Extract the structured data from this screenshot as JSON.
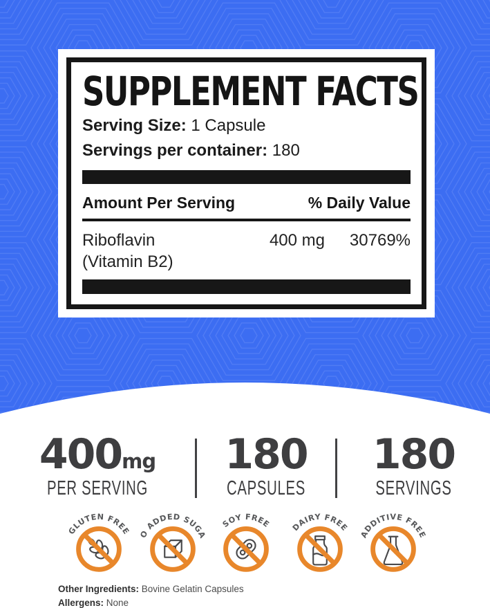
{
  "label_panel": {
    "title": "SUPPLEMENT FACTS",
    "serving_size_label": "Serving Size:",
    "serving_size_value": "1 Capsule",
    "servings_per_container_label": "Servings per container:",
    "servings_per_container_value": "180",
    "column_amount": "Amount Per Serving",
    "column_daily_value": "% Daily Value",
    "rows": [
      {
        "name": "Riboflavin",
        "name_note": "(Vitamin B2)",
        "amount": "400 mg",
        "daily_value": "30769%"
      }
    ]
  },
  "stats": [
    {
      "value": "400",
      "unit": "mg",
      "label": "PER SERVING"
    },
    {
      "value": "180",
      "unit": "",
      "label": "CAPSULES"
    },
    {
      "value": "180",
      "unit": "",
      "label": "SERVINGS"
    }
  ],
  "badges": [
    {
      "label": "GLUTEN FREE",
      "icon": "wheat-icon"
    },
    {
      "label": "NO ADDED SUGAR",
      "icon": "sugar-cube-icon"
    },
    {
      "label": "SOY FREE",
      "icon": "soybean-icon"
    },
    {
      "label": "DAIRY FREE",
      "icon": "milk-bottle-icon"
    },
    {
      "label": "ADDITIVE FREE",
      "icon": "flask-icon"
    }
  ],
  "footer": {
    "other_ingredients_label": "Other Ingredients:",
    "other_ingredients_value": "Bovine Gelatin Capsules",
    "allergens_label": "Allergens:",
    "allergens_value": "None"
  },
  "colors": {
    "background_blue": "#3C6DF2",
    "accent_orange": "#E8872B",
    "badge_icon_gray": "#4A4A4C",
    "text_charcoal": "#3E3E40",
    "panel_black": "#171717"
  }
}
